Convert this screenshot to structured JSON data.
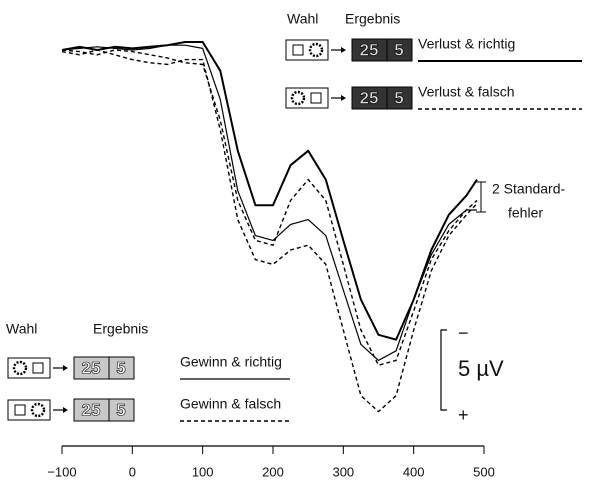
{
  "chart_data": {
    "type": "line",
    "x": [
      -100,
      -75,
      -50,
      -25,
      0,
      25,
      50,
      75,
      100,
      125,
      150,
      175,
      200,
      225,
      250,
      275,
      300,
      325,
      350,
      375,
      400,
      425,
      450,
      475,
      490
    ],
    "series": [
      {
        "name": "Verlust & richtig",
        "color": "#000000",
        "style": "solid",
        "width": 2,
        "values": [
          0,
          -0.2,
          0,
          -0.2,
          -0.1,
          -0.2,
          -0.3,
          -0.5,
          -0.5,
          1.3,
          6.3,
          9.7,
          9.7,
          7.2,
          6.3,
          8.1,
          11.9,
          15.6,
          17.8,
          18.1,
          15.6,
          12.5,
          10.3,
          9.1,
          8.1
        ]
      },
      {
        "name": "Verlust & falsch",
        "color": "#000000",
        "style": "dashed",
        "width": 1.4,
        "values": [
          0,
          0.1,
          0.3,
          0,
          0.1,
          0.3,
          0.5,
          0.8,
          0.9,
          4.4,
          9.4,
          11.9,
          12.2,
          9.4,
          8.1,
          9.4,
          13.4,
          17.5,
          19.7,
          19.4,
          16.3,
          13.1,
          11.3,
          10,
          9.4
        ]
      },
      {
        "name": "Gewinn & richtig",
        "color": "#000000",
        "style": "solid",
        "width": 1.2,
        "values": [
          0,
          -0.1,
          -0.2,
          -0.1,
          0,
          -0.1,
          -0.3,
          -0.3,
          -0.1,
          3.1,
          8.8,
          11.6,
          11.9,
          10.9,
          10.6,
          11.6,
          15,
          18.4,
          19.4,
          18.8,
          15.6,
          12.8,
          10.9,
          10,
          10
        ]
      },
      {
        "name": "Gewinn & falsch",
        "color": "#000000",
        "style": "dashed",
        "width": 1.4,
        "values": [
          0.1,
          0.3,
          0,
          0.3,
          0.6,
          0.8,
          0.9,
          0.6,
          0.6,
          5,
          10.6,
          13.1,
          13.4,
          12.5,
          12.2,
          13.4,
          17.5,
          21.6,
          22.6,
          21.6,
          17.5,
          13.8,
          11.6,
          10.3,
          9.6
        ]
      }
    ],
    "xlim": [
      -100,
      500
    ],
    "xticks": [
      {
        "value": -100,
        "label": "−100"
      },
      0,
      100,
      200,
      300,
      400,
      500
    ],
    "ylim": [
      -2,
      24
    ],
    "legend_header": {
      "choice": "Wahl",
      "result": "Ergebnis"
    },
    "outcome_icon": [
      "25",
      "5"
    ],
    "error_bar_label": [
      "2 Standard-",
      "fehler"
    ],
    "scale_bar": {
      "value": 5,
      "label": "5 µV",
      "top": "−",
      "bottom": "+"
    }
  }
}
